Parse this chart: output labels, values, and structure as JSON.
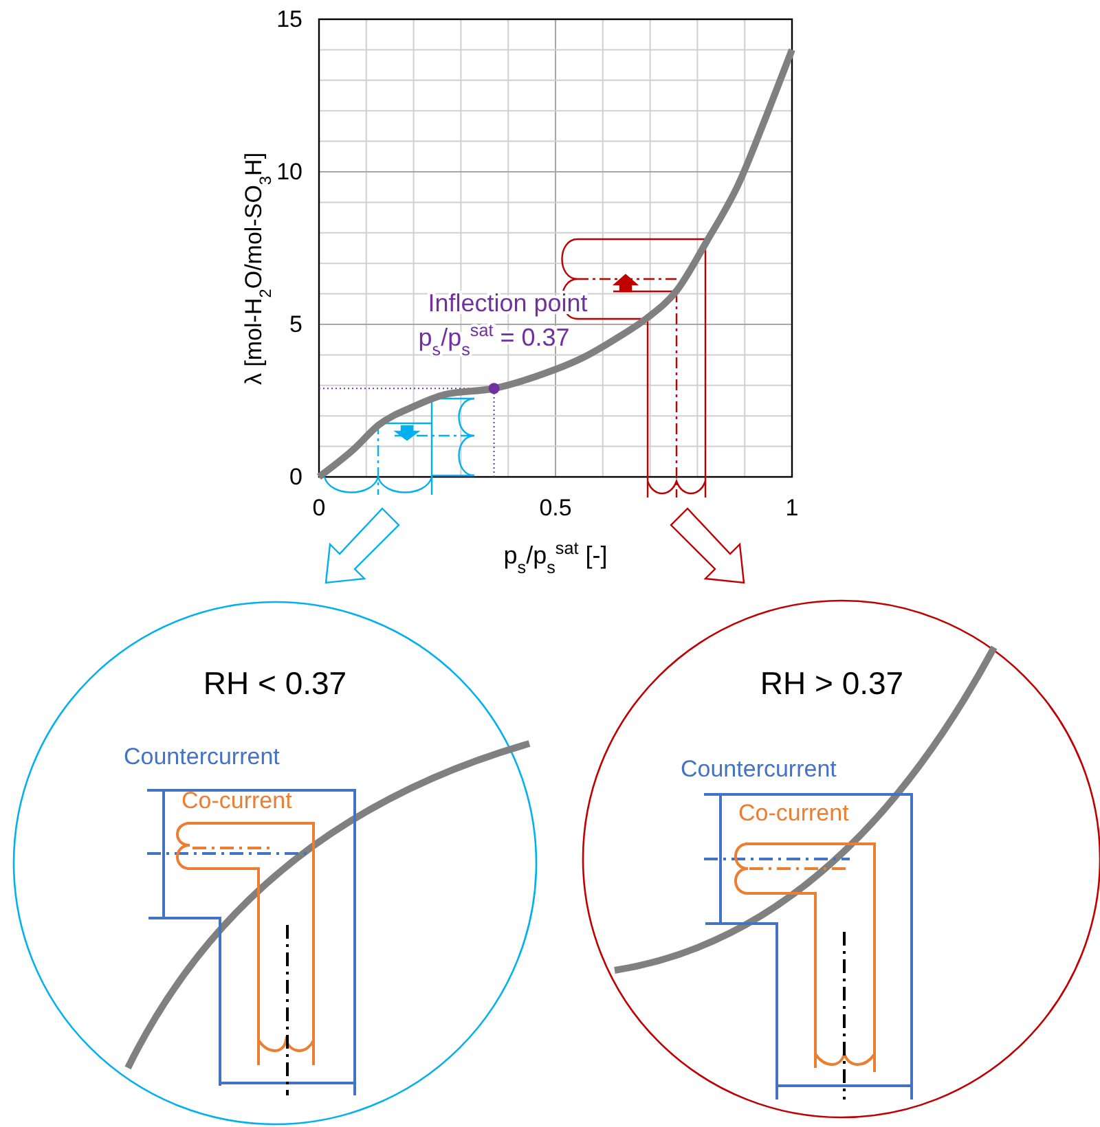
{
  "chart_data": {
    "type": "line",
    "xlabel": "p$_{s}$/p$_{s}$$^{sat}$ [-]",
    "ylabel": "λ [mol-H$_{2}$O/mol-SO$_{3}$H]",
    "xlim": [
      0,
      1
    ],
    "ylim": [
      0,
      15
    ],
    "xticks": [
      0,
      {
        "value": 0.1,
        "label": null
      },
      {
        "value": 0.2,
        "label": null
      },
      {
        "value": 0.3,
        "label": null
      },
      {
        "value": 0.4,
        "label": null
      },
      0.5,
      {
        "value": 0.6,
        "label": null
      },
      {
        "value": 0.7,
        "label": null
      },
      {
        "value": 0.8,
        "label": null
      },
      {
        "value": 0.9,
        "label": null
      },
      1
    ],
    "yticks": [
      0,
      {
        "value": 1,
        "label": null
      },
      {
        "value": 2,
        "label": null
      },
      {
        "value": 3,
        "label": null
      },
      {
        "value": 4,
        "label": null
      },
      5,
      {
        "value": 6,
        "label": null
      },
      {
        "value": 7,
        "label": null
      },
      {
        "value": 8,
        "label": null
      },
      {
        "value": 9,
        "label": null
      },
      10,
      {
        "value": 11,
        "label": null
      },
      {
        "value": 12,
        "label": null
      },
      {
        "value": 13,
        "label": null
      },
      {
        "value": 14,
        "label": null
      },
      15
    ],
    "grid": true,
    "ref_lines": [
      {
        "axis": "x",
        "value": 0.37,
        "label": null,
        "color": "#7030a0",
        "line_style": "dotted"
      },
      {
        "axis": "y",
        "value": 2.9,
        "label": null,
        "color": "#7030a0",
        "line_style": "dotted"
      }
    ],
    "series": [
      {
        "type": "line",
        "color": "#808080",
        "marker": "none",
        "x": [
          0,
          0.073,
          0.126,
          0.199,
          0.266,
          0.37,
          0.46,
          0.557,
          0.635,
          0.693,
          0.756,
          0.819,
          0.887,
          0.945,
          1
        ],
        "values": [
          0,
          0.9,
          1.7,
          2.3,
          2.7,
          2.9,
          3.3,
          3.9,
          4.6,
          5.2,
          6.1,
          7.7,
          9.6,
          11.8,
          14
        ]
      },
      {
        "type": "scatter",
        "color": "#7030a0",
        "marker": "circle",
        "x": [
          0.37
        ],
        "values": [
          2.9
        ]
      }
    ],
    "annotations": [
      {
        "text": "Inflection point\np$_{s}$/p$_{s}$$^{sat}$ = 0.37",
        "x": 0.37,
        "y": 2.9
      },
      "RH < 0.37",
      "Countercurrent",
      "Co-current",
      "RH > 0.37",
      "Countercurrent",
      "Co-current"
    ]
  }
}
